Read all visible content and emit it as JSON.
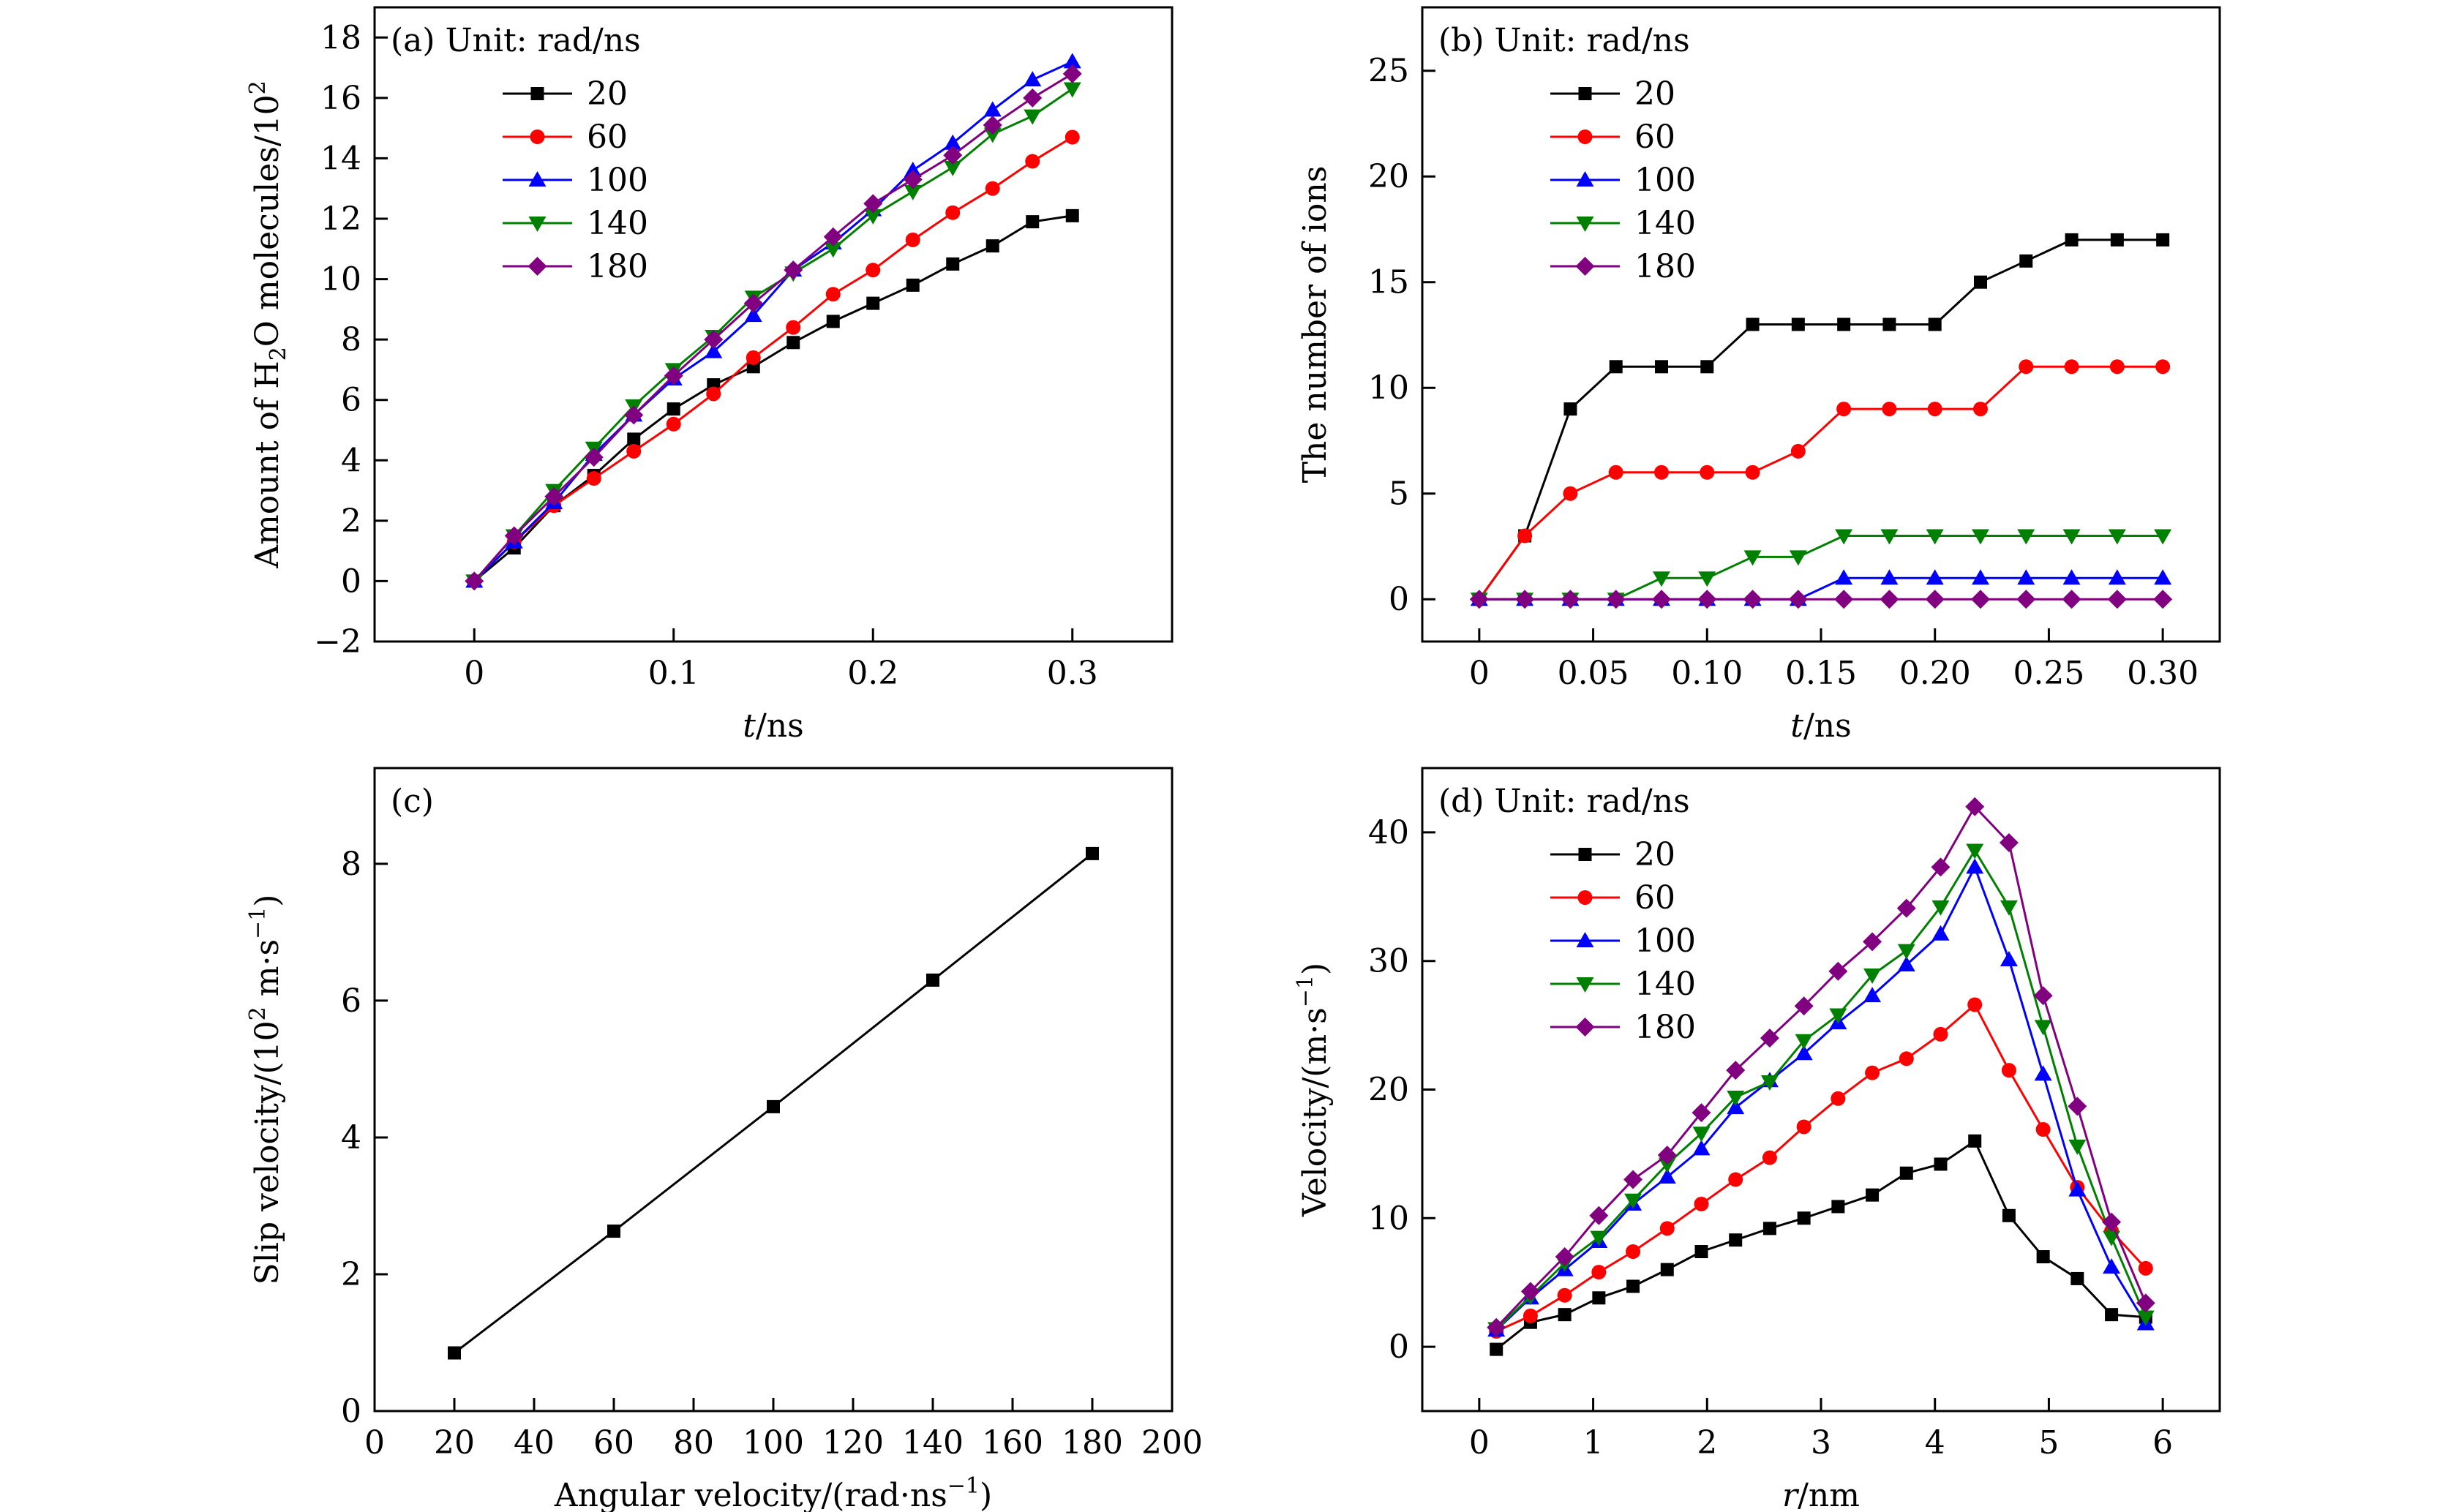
{
  "colors": {
    "black": "#000000",
    "red": "#ff0000",
    "blue": "#0000ff",
    "green": "#008000",
    "purple": "#800080"
  },
  "chart_data": [
    {
      "id": "a",
      "type": "line",
      "panel_label": "(a)",
      "legend_title": "Unit: rad/ns",
      "legend_placement": "top-left",
      "xlabel_italic": "t",
      "xlabel_rest": "/ns",
      "ylabel_pre": "Amount of H",
      "ylabel_sub": "2",
      "ylabel_mid": "O molecules/10",
      "ylabel_sup": "2",
      "xlim": [
        -0.05,
        0.35
      ],
      "ylim": [
        -2,
        19
      ],
      "xticks": [
        0,
        0.1,
        0.2,
        0.3
      ],
      "xtick_labels": [
        "0",
        "0.1",
        "0.2",
        "0.3"
      ],
      "yticks": [
        -2,
        0,
        2,
        4,
        6,
        8,
        10,
        12,
        14,
        16,
        18
      ],
      "ytick_labels": [
        "−2",
        "0",
        "2",
        "4",
        "6",
        "8",
        "10",
        "12",
        "14",
        "16",
        "18"
      ],
      "x": [
        0,
        0.02,
        0.04,
        0.06,
        0.08,
        0.1,
        0.12,
        0.14,
        0.16,
        0.18,
        0.2,
        0.22,
        0.24,
        0.26,
        0.28,
        0.3
      ],
      "series": [
        {
          "name": "20",
          "color": "black",
          "marker": "square",
          "values": [
            0,
            1.1,
            2.5,
            3.5,
            4.7,
            5.7,
            6.5,
            7.1,
            7.9,
            8.6,
            9.2,
            9.8,
            10.5,
            11.1,
            11.9,
            12.1
          ]
        },
        {
          "name": "60",
          "color": "red",
          "marker": "circle",
          "values": [
            0,
            1.3,
            2.5,
            3.4,
            4.3,
            5.2,
            6.2,
            7.4,
            8.4,
            9.5,
            10.3,
            11.3,
            12.2,
            13.0,
            13.9,
            14.7
          ]
        },
        {
          "name": "100",
          "color": "blue",
          "marker": "triangle-up",
          "values": [
            0,
            1.3,
            2.6,
            4.2,
            5.5,
            6.7,
            7.6,
            8.8,
            10.3,
            11.2,
            12.3,
            13.6,
            14.5,
            15.6,
            16.6,
            17.2
          ]
        },
        {
          "name": "140",
          "color": "green",
          "marker": "triangle-down",
          "values": [
            0,
            1.5,
            3.0,
            4.4,
            5.8,
            7.0,
            8.1,
            9.4,
            10.2,
            11.0,
            12.1,
            12.9,
            13.7,
            14.8,
            15.4,
            16.3
          ]
        },
        {
          "name": "180",
          "color": "purple",
          "marker": "diamond",
          "values": [
            0,
            1.5,
            2.8,
            4.1,
            5.5,
            6.8,
            8.0,
            9.2,
            10.3,
            11.4,
            12.5,
            13.3,
            14.1,
            15.1,
            16.0,
            16.8
          ]
        }
      ]
    },
    {
      "id": "b",
      "type": "line",
      "panel_label": "(b)",
      "legend_title": "Unit: rad/ns",
      "legend_placement": "top-left",
      "xlabel_italic": "t",
      "xlabel_rest": "/ns",
      "ylabel": "The number of ions",
      "xlim": [
        -0.025,
        0.325
      ],
      "ylim": [
        -2,
        28
      ],
      "xticks": [
        0,
        0.05,
        0.1,
        0.15,
        0.2,
        0.25,
        0.3
      ],
      "xtick_labels": [
        "0",
        "0.05",
        "0.10",
        "0.15",
        "0.20",
        "0.25",
        "0.30"
      ],
      "yticks": [
        0,
        5,
        10,
        15,
        20,
        25
      ],
      "ytick_labels": [
        "0",
        "5",
        "10",
        "15",
        "20",
        "25"
      ],
      "x": [
        0,
        0.02,
        0.04,
        0.06,
        0.08,
        0.1,
        0.12,
        0.14,
        0.16,
        0.18,
        0.2,
        0.22,
        0.24,
        0.26,
        0.28,
        0.3
      ],
      "series": [
        {
          "name": "20",
          "color": "black",
          "marker": "square",
          "values": [
            0,
            3,
            9,
            11,
            11,
            11,
            13,
            13,
            13,
            13,
            13,
            15,
            16,
            17,
            17,
            17
          ]
        },
        {
          "name": "60",
          "color": "red",
          "marker": "circle",
          "values": [
            0,
            3,
            5,
            6,
            6,
            6,
            6,
            7,
            9,
            9,
            9,
            9,
            11,
            11,
            11,
            11
          ]
        },
        {
          "name": "100",
          "color": "blue",
          "marker": "triangle-up",
          "values": [
            0,
            0,
            0,
            0,
            0,
            0,
            0,
            0,
            1,
            1,
            1,
            1,
            1,
            1,
            1,
            1
          ]
        },
        {
          "name": "140",
          "color": "green",
          "marker": "triangle-down",
          "values": [
            0,
            0,
            0,
            0,
            1,
            1,
            2,
            2,
            3,
            3,
            3,
            3,
            3,
            3,
            3,
            3
          ]
        },
        {
          "name": "180",
          "color": "purple",
          "marker": "diamond",
          "values": [
            0,
            0,
            0,
            0,
            0,
            0,
            0,
            0,
            0,
            0,
            0,
            0,
            0,
            0,
            0,
            0
          ]
        }
      ]
    },
    {
      "id": "c",
      "type": "line",
      "panel_label": "(c)",
      "xlabel_pre": "Angular velocity/(rad·ns",
      "xlabel_sup": "−1",
      "xlabel_post": ")",
      "ylabel_pre": "Slip velocity/(10",
      "ylabel_sup": "2",
      "ylabel_mid": " m·s",
      "ylabel_sup2": "−1",
      "ylabel_post": ")",
      "xlim": [
        0,
        200
      ],
      "ylim": [
        0,
        9.4
      ],
      "xticks": [
        0,
        20,
        40,
        60,
        80,
        100,
        120,
        140,
        160,
        180,
        200
      ],
      "xtick_labels": [
        "0",
        "20",
        "40",
        "60",
        "80",
        "100",
        "120",
        "140",
        "160",
        "180",
        "200"
      ],
      "yticks": [
        0,
        2,
        4,
        6,
        8
      ],
      "ytick_labels": [
        "0",
        "2",
        "4",
        "6",
        "8"
      ],
      "x": [
        20,
        60,
        100,
        140,
        180
      ],
      "series": [
        {
          "color": "black",
          "marker": "square",
          "values": [
            0.85,
            2.63,
            4.45,
            6.3,
            8.15
          ]
        }
      ]
    },
    {
      "id": "d",
      "type": "line",
      "panel_label": "(d)",
      "legend_title": "Unit: rad/ns",
      "legend_placement": "top-left",
      "xlabel_italic": "r",
      "xlabel_rest": "/nm",
      "ylabel_pre": "Velocity/(m·s",
      "ylabel_sup": "−1",
      "ylabel_post": ")",
      "xlim": [
        -0.5,
        6.5
      ],
      "ylim": [
        -5,
        45
      ],
      "xticks": [
        0,
        1,
        2,
        3,
        4,
        5,
        6
      ],
      "xtick_labels": [
        "0",
        "1",
        "2",
        "3",
        "4",
        "5",
        "6"
      ],
      "yticks": [
        0,
        10,
        20,
        30,
        40
      ],
      "ytick_labels": [
        "0",
        "10",
        "20",
        "30",
        "40"
      ],
      "x": [
        0.15,
        0.45,
        0.75,
        1.05,
        1.35,
        1.65,
        1.95,
        2.25,
        2.55,
        2.85,
        3.15,
        3.45,
        3.75,
        4.05,
        4.35,
        4.65,
        4.95,
        5.25,
        5.55,
        5.85
      ],
      "series": [
        {
          "name": "20",
          "color": "black",
          "marker": "square",
          "values": [
            -0.2,
            1.9,
            2.5,
            3.8,
            4.7,
            6.0,
            7.4,
            8.3,
            9.2,
            10.0,
            10.9,
            11.8,
            13.5,
            14.2,
            16.0,
            10.2,
            7.0,
            5.3,
            2.5,
            2.3
          ]
        },
        {
          "name": "60",
          "color": "red",
          "marker": "circle",
          "values": [
            1.2,
            2.4,
            4.0,
            5.8,
            7.4,
            9.2,
            11.1,
            13.0,
            14.7,
            17.1,
            19.3,
            21.3,
            22.4,
            24.3,
            26.6,
            21.5,
            16.9,
            12.4,
            9.0,
            6.1
          ]
        },
        {
          "name": "100",
          "color": "blue",
          "marker": "triangle-up",
          "values": [
            1.3,
            3.8,
            6.0,
            8.2,
            11.1,
            13.2,
            15.4,
            18.6,
            20.7,
            22.8,
            25.2,
            27.3,
            29.7,
            32.1,
            37.3,
            30.1,
            21.2,
            12.2,
            6.2,
            1.8
          ]
        },
        {
          "name": "140",
          "color": "green",
          "marker": "triangle-down",
          "values": [
            1.4,
            3.9,
            6.5,
            8.5,
            11.4,
            14.2,
            16.6,
            19.4,
            20.6,
            23.8,
            25.8,
            28.9,
            30.8,
            34.2,
            38.6,
            34.2,
            24.9,
            15.6,
            8.5,
            2.3
          ]
        },
        {
          "name": "180",
          "color": "purple",
          "marker": "diamond",
          "values": [
            1.5,
            4.3,
            7.0,
            10.2,
            13.0,
            14.9,
            18.2,
            21.5,
            24.0,
            26.5,
            29.2,
            31.5,
            34.1,
            37.3,
            42.0,
            39.2,
            27.3,
            18.7,
            9.7,
            3.4
          ]
        }
      ]
    }
  ]
}
